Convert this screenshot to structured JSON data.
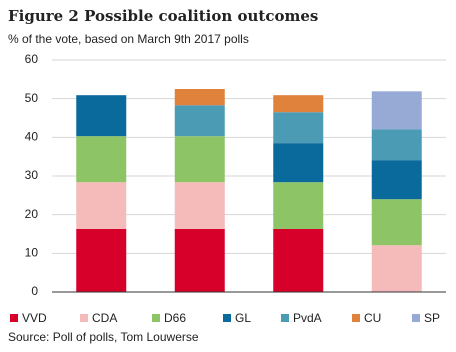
{
  "chart_data": {
    "type": "stacked_bar",
    "title": "Figure 2 Possible coalition outcomes",
    "subtitle": "% of the vote, based on March 9th 2017 polls",
    "source": "Source: Poll of polls, Tom Louwerse",
    "categories": [
      null,
      null,
      null,
      null
    ],
    "series": [
      {
        "name": "VVD",
        "color": "#d7002b",
        "values": [
          16.3,
          16.3,
          16.3,
          null
        ]
      },
      {
        "name": "CDA",
        "color": "#f5baba",
        "values": [
          12.1,
          12.1,
          null,
          12.1
        ]
      },
      {
        "name": "D66",
        "color": "#8dc466",
        "values": [
          11.9,
          11.9,
          12.1,
          11.9
        ]
      },
      {
        "name": "GL",
        "color": "#0b6a9c",
        "values": [
          10.6,
          null,
          10.1,
          10.1
        ]
      },
      {
        "name": "PvdA",
        "color": "#4b9bb5",
        "values": [
          null,
          8,
          8,
          8
        ]
      },
      {
        "name": "CU",
        "color": "#e0823c",
        "values": [
          null,
          4.2,
          4.4,
          null
        ]
      },
      {
        "name": "SP",
        "color": "#97aad5",
        "values": [
          null,
          null,
          null,
          9.8
        ]
      }
    ],
    "ylim": [
      0,
      60
    ],
    "yticks": [
      0,
      10,
      20,
      30,
      40,
      50,
      60
    ],
    "grid": true
  }
}
